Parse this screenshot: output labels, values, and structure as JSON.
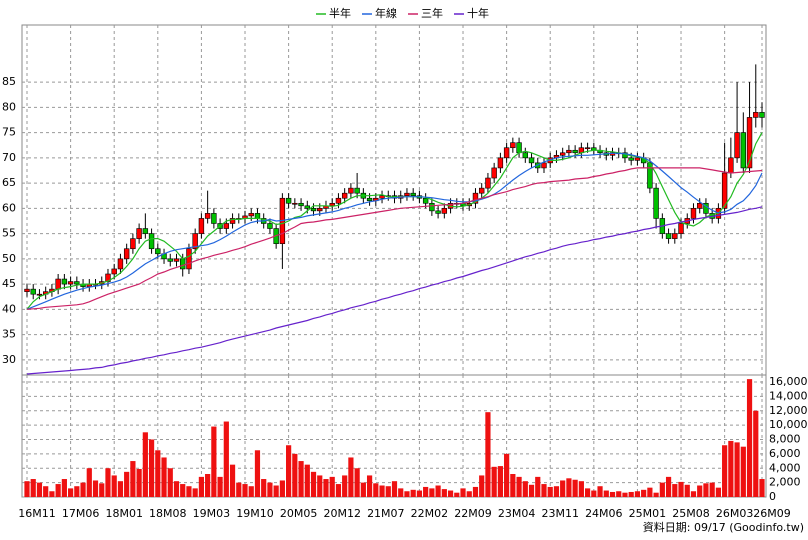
{
  "chart_data": {
    "type": "candlestick",
    "footnote": "資料日期: 09/17 (Goodinfo.tw)",
    "up_color": "#ff0000",
    "down_color": "#00c000",
    "grid": true,
    "ylim": [
      27,
      96.3
    ],
    "yticks": [
      30,
      35,
      40,
      45,
      50,
      55,
      60,
      65,
      70,
      75,
      80,
      85
    ],
    "categories": [
      "16M11",
      null,
      null,
      null,
      null,
      null,
      null,
      "17M06",
      null,
      null,
      null,
      null,
      null,
      null,
      "18M01",
      null,
      null,
      null,
      null,
      null,
      null,
      "18M08",
      null,
      null,
      null,
      null,
      null,
      null,
      "19M03",
      null,
      null,
      null,
      null,
      null,
      null,
      "19M10",
      null,
      null,
      null,
      null,
      null,
      null,
      "20M05",
      null,
      null,
      null,
      null,
      null,
      null,
      "20M12",
      null,
      null,
      null,
      null,
      null,
      null,
      "21M07",
      null,
      null,
      null,
      null,
      null,
      null,
      "22M02",
      null,
      null,
      null,
      null,
      null,
      null,
      "22M09",
      null,
      null,
      null,
      null,
      null,
      null,
      "23M04",
      null,
      null,
      null,
      null,
      null,
      null,
      "23M11",
      null,
      null,
      null,
      null,
      null,
      null,
      "24M06",
      null,
      null,
      null,
      null,
      null,
      null,
      "25M01",
      null,
      null,
      null,
      null,
      null,
      null,
      "25M08",
      null,
      null,
      null,
      null,
      null,
      null,
      "26M03",
      null,
      null,
      null,
      null,
      null,
      "26M09"
    ],
    "open": [
      43.5,
      44,
      43,
      43,
      43.5,
      44,
      46,
      45,
      45.5,
      45,
      44.5,
      45,
      45,
      45.5,
      47,
      48,
      50,
      52,
      54,
      56,
      55,
      52,
      51,
      50,
      49.5,
      50,
      48,
      52,
      55,
      58,
      59,
      57,
      56,
      57,
      58,
      58,
      58.5,
      59,
      58,
      57,
      56,
      53,
      62,
      61,
      61,
      60.5,
      60,
      59.5,
      60,
      60.5,
      61,
      62,
      63,
      64,
      63,
      62,
      61.5,
      62,
      62.5,
      62.5,
      62,
      62.5,
      63,
      62.5,
      62,
      61,
      59.5,
      59,
      60,
      61,
      61,
      60.5,
      61,
      63,
      64,
      66,
      68,
      70,
      72,
      73,
      71,
      70,
      69,
      68,
      69,
      70,
      70.5,
      71,
      71.5,
      71,
      72,
      72,
      71.5,
      71,
      70.5,
      71,
      71,
      70,
      69.5,
      70,
      69,
      64,
      58,
      55,
      54,
      55,
      57,
      58,
      60,
      61,
      59,
      58,
      60,
      67,
      70,
      75,
      68,
      78,
      79
    ],
    "high": [
      45,
      45,
      44,
      44.5,
      45,
      47,
      47,
      46.5,
      46.5,
      46,
      46,
      46,
      46.5,
      48,
      49,
      51,
      53,
      55,
      57,
      59,
      56,
      53,
      52,
      51,
      51,
      51,
      53,
      56,
      59,
      63.5,
      60,
      58,
      58,
      59,
      59,
      59.5,
      60,
      60,
      59,
      58,
      57,
      63,
      63,
      62,
      62,
      61.5,
      61,
      61,
      61.5,
      62,
      63,
      64,
      65,
      67,
      64,
      63,
      63,
      63.5,
      63.5,
      63.5,
      63.5,
      64,
      64,
      63.5,
      63,
      62,
      60.5,
      61,
      62,
      62,
      62,
      62,
      64,
      65,
      67,
      69,
      71,
      73,
      74,
      74,
      72,
      71,
      70,
      70,
      71,
      71.5,
      72,
      72.5,
      72.5,
      73,
      73,
      73,
      72.5,
      72,
      72,
      72,
      72,
      71,
      71,
      71,
      70,
      65,
      59,
      56,
      56,
      58,
      59,
      61,
      62,
      62,
      60,
      61,
      73,
      74,
      85,
      79,
      85,
      88.5,
      81
    ],
    "low": [
      42.5,
      42,
      42,
      42,
      42.5,
      43,
      44,
      44,
      44,
      43.5,
      43.5,
      44,
      44,
      44.5,
      46,
      47,
      49,
      51,
      53,
      54,
      51,
      50,
      49,
      48.5,
      48.5,
      46.5,
      47,
      51,
      54,
      57,
      56,
      55,
      55,
      56,
      57,
      57,
      57.5,
      57,
      56,
      55,
      52,
      48,
      60,
      60,
      59.5,
      59,
      58.5,
      58.5,
      59,
      59.5,
      60,
      61,
      62,
      62,
      61,
      60.5,
      60.5,
      61,
      61.5,
      61,
      61,
      61.5,
      61.5,
      61,
      60,
      58.5,
      58,
      58,
      59,
      60,
      59.5,
      59.5,
      60,
      62,
      63,
      65,
      67,
      69,
      71,
      70,
      69,
      68,
      67,
      67,
      68,
      69,
      69.5,
      70,
      70,
      70,
      71,
      70.5,
      70,
      69.5,
      69.5,
      70,
      69,
      68.5,
      68.5,
      68,
      63,
      56,
      54,
      53,
      53,
      54,
      56,
      57,
      59,
      58,
      57,
      57,
      59,
      66,
      69,
      67,
      67,
      76,
      76
    ],
    "close": [
      44,
      43,
      43,
      43.5,
      44,
      46,
      45,
      45.5,
      45,
      44.5,
      45,
      45,
      45.5,
      47,
      48,
      50,
      52,
      54,
      56,
      55,
      52,
      51,
      50,
      49.5,
      50,
      48,
      52,
      55,
      58,
      59,
      57,
      56,
      57,
      58,
      58,
      58.5,
      59,
      58,
      57,
      56,
      53,
      62,
      61,
      61,
      60.5,
      60,
      59.5,
      60,
      60.5,
      61,
      62,
      63,
      64,
      63,
      62,
      61.5,
      62,
      62.5,
      62.5,
      62,
      62.5,
      63,
      62.5,
      62,
      61,
      59.5,
      59,
      60,
      61,
      61,
      60.5,
      61,
      63,
      64,
      66,
      68,
      70,
      72,
      73,
      71,
      70,
      69,
      68,
      69,
      70,
      70.5,
      71,
      71.5,
      71,
      72,
      72,
      71.5,
      71,
      70.5,
      71,
      71,
      70,
      69.5,
      70,
      69,
      64,
      58,
      55,
      54,
      55,
      57,
      58,
      60,
      61,
      59,
      58,
      60,
      67,
      70,
      75,
      68,
      78,
      79,
      78
    ],
    "series": [
      {
        "name": "半年",
        "color": "#22bb22",
        "values": [
          40,
          41.5,
          42.5,
          43,
          43.5,
          44,
          44.3,
          44.5,
          44.8,
          45,
          45,
          45,
          45.2,
          45.6,
          46.3,
          47.2,
          48.5,
          50,
          52,
          53.5,
          54,
          54,
          53.5,
          52.5,
          51.5,
          50,
          50.5,
          51.5,
          53,
          54.5,
          55.5,
          56.5,
          57.5,
          57.8,
          57.8,
          58,
          58,
          58,
          57.8,
          57.5,
          56.8,
          57,
          57.5,
          58.2,
          58.5,
          59.5,
          60.5,
          60.5,
          60.5,
          60.4,
          60.6,
          61.3,
          62,
          62.5,
          62.5,
          62.5,
          62.6,
          62.7,
          62.3,
          62.2,
          62.3,
          62.3,
          62.3,
          62.3,
          62.2,
          61.7,
          61.2,
          60.8,
          60.4,
          60.3,
          60.4,
          60.7,
          61.3,
          62,
          63,
          64.5,
          66,
          68,
          70,
          71,
          71.3,
          71,
          70.5,
          70,
          69.5,
          69.5,
          69.7,
          70,
          70.5,
          71,
          71.3,
          71.5,
          71.5,
          71.3,
          71.2,
          71,
          70.7,
          70.4,
          70.2,
          69.9,
          68.9,
          66.9,
          64.3,
          61.7,
          59.2,
          57.2,
          56.8,
          56.5,
          57.2,
          58.3,
          58.8,
          59,
          60.5,
          62.3,
          65,
          66.7,
          69.3,
          72.8,
          75
        ]
      },
      {
        "name": "年線",
        "color": "#2266dd",
        "values": [
          40,
          40.5,
          41,
          41.5,
          42,
          42.5,
          43,
          43.4,
          43.8,
          44.1,
          44.4,
          44.6,
          44.8,
          45.1,
          45.4,
          45.8,
          46.4,
          47.2,
          48.1,
          49,
          49.7,
          50.4,
          51,
          51.5,
          51.8,
          52,
          52.2,
          52.4,
          52.6,
          52.8,
          53.2,
          53.8,
          54.5,
          55.3,
          56,
          56.7,
          57.2,
          57.5,
          57.5,
          57.8,
          57.5,
          57.6,
          57.8,
          58,
          58.2,
          58.5,
          58.7,
          58.9,
          59.1,
          59.3,
          59.6,
          60,
          60.3,
          60.7,
          61,
          61.3,
          61.5,
          61.8,
          62,
          62.1,
          62.2,
          62.3,
          62.3,
          62.3,
          62.2,
          62.1,
          61.9,
          61.7,
          61.6,
          61.4,
          61.3,
          61.3,
          61.5,
          61.8,
          62.2,
          62.8,
          63.6,
          64.6,
          65.6,
          66.5,
          67.3,
          68,
          68.6,
          69.2,
          69.6,
          70,
          70.2,
          70.3,
          70.4,
          70.5,
          70.5,
          70.6,
          70.7,
          70.8,
          70.9,
          70.9,
          70.8,
          70.6,
          70.3,
          70,
          69.4,
          68.4,
          67.4,
          66.3,
          65.2,
          64.1,
          63.2,
          62.2,
          61.3,
          60.4,
          59.6,
          59.1,
          59.3,
          59.8,
          60.8,
          61.5,
          62.8,
          64.5,
          67
        ]
      },
      {
        "name": "三年",
        "color": "#cc2266",
        "values": [
          40,
          40.1,
          40.2,
          40.4,
          40.5,
          40.6,
          40.7,
          40.8,
          40.9,
          41.1,
          41.5,
          42,
          42.5,
          43,
          43.4,
          43.8,
          44.2,
          44.6,
          45,
          45.7,
          46.3,
          47,
          47.4,
          47.9,
          48.3,
          48.7,
          49.1,
          49.6,
          50,
          50.3,
          50.7,
          51,
          51.3,
          51.7,
          52,
          52.4,
          52.9,
          53.3,
          53.7,
          54.1,
          54.6,
          55,
          55.7,
          56.3,
          57,
          57.2,
          57.3,
          57.5,
          57.7,
          57.8,
          58,
          58.2,
          58.4,
          58.6,
          58.8,
          59,
          59.2,
          59.4,
          59.6,
          59.8,
          60,
          60.1,
          60.2,
          60.3,
          60.4,
          60.5,
          60.6,
          60.7,
          60.8,
          60.9,
          61,
          61.3,
          61.7,
          62,
          62.3,
          62.7,
          63,
          63.3,
          63.7,
          64,
          64.3,
          64.7,
          65,
          65.1,
          65.3,
          65.4,
          65.5,
          65.6,
          65.8,
          65.9,
          66,
          66.3,
          66.5,
          66.8,
          67,
          67.3,
          67.5,
          67.8,
          68,
          68,
          68,
          68,
          68,
          68,
          68,
          68,
          68,
          68,
          68,
          67.8,
          67.6,
          67.4,
          67.2,
          67,
          67.1,
          67.2,
          67.3,
          67.4,
          67.5
        ]
      },
      {
        "name": "十年",
        "color": "#6622cc",
        "values": [
          27.2,
          27.3,
          27.4,
          27.5,
          27.6,
          27.7,
          27.8,
          27.9,
          28,
          28.1,
          28.2,
          28.4,
          28.5,
          28.8,
          29,
          29.3,
          29.5,
          29.8,
          30,
          30.3,
          30.5,
          30.8,
          31,
          31.3,
          31.5,
          31.8,
          32,
          32.3,
          32.5,
          32.8,
          33.1,
          33.4,
          33.8,
          34.1,
          34.4,
          34.7,
          35,
          35.3,
          35.6,
          35.9,
          36.3,
          36.6,
          36.9,
          37.2,
          37.5,
          37.8,
          38.2,
          38.5,
          38.9,
          39.2,
          39.6,
          39.9,
          40.3,
          40.6,
          40.9,
          41.3,
          41.6,
          42,
          42.3,
          42.7,
          43,
          43.4,
          43.7,
          44.1,
          44.4,
          44.8,
          45.1,
          45.5,
          45.8,
          46.2,
          46.5,
          46.9,
          47.3,
          47.7,
          48,
          48.4,
          48.8,
          49.2,
          49.6,
          50,
          50.4,
          50.7,
          51.1,
          51.4,
          51.8,
          52.1,
          52.5,
          52.8,
          53,
          53.3,
          53.5,
          53.8,
          54,
          54.3,
          54.5,
          54.8,
          55,
          55.3,
          55.5,
          55.8,
          56,
          56.3,
          56.5,
          56.8,
          57,
          57.3,
          57.5,
          57.8,
          58,
          58.2,
          58.4,
          58.6,
          58.8,
          59,
          59.2,
          59.5,
          59.8,
          60,
          60.3
        ]
      }
    ],
    "volume": {
      "color": "#ee1111",
      "ylim": [
        0,
        16974
      ],
      "yticks": [
        0,
        {
          "value": 2000,
          "label": "2,000"
        },
        {
          "value": 4000,
          "label": "4,000"
        },
        {
          "value": 6000,
          "label": "6,000"
        },
        {
          "value": 8000,
          "label": "8,000"
        },
        {
          "value": 10000,
          "label": "10,000"
        },
        {
          "value": 12000,
          "label": "12,000"
        },
        {
          "value": 14000,
          "label": "14,000"
        },
        {
          "value": 16000,
          "label": "16,000"
        }
      ],
      "values": [
        2200,
        2500,
        2000,
        1500,
        800,
        1800,
        2500,
        1200,
        1500,
        2000,
        4000,
        2300,
        1900,
        4000,
        3000,
        2200,
        3500,
        5000,
        3900,
        9000,
        8000,
        6500,
        5500,
        4000,
        2200,
        1800,
        1500,
        1200,
        2800,
        3200,
        9800,
        2800,
        10500,
        4500,
        2000,
        1800,
        1500,
        6500,
        2500,
        2000,
        1600,
        2300,
        7200,
        6000,
        5000,
        4500,
        3500,
        3000,
        2500,
        2800,
        1800,
        3000,
        5500,
        4000,
        2000,
        3000,
        1900,
        1600,
        1500,
        2200,
        1200,
        800,
        1000,
        900,
        1400,
        1200,
        1600,
        1100,
        900,
        600,
        1200,
        800,
        1400,
        3000,
        11800,
        4200,
        4300,
        6000,
        3200,
        2800,
        2200,
        1700,
        2800,
        1800,
        1400,
        1500,
        2300,
        2600,
        2400,
        2200,
        1200,
        900,
        1500,
        900,
        700,
        800,
        600,
        700,
        800,
        1000,
        1300,
        600,
        2000,
        2800,
        1800,
        2100,
        1700,
        800,
        1600,
        1900,
        2000,
        1300,
        7200,
        7800,
        7600,
        7000,
        16400,
        12000,
        2500
      ]
    }
  }
}
